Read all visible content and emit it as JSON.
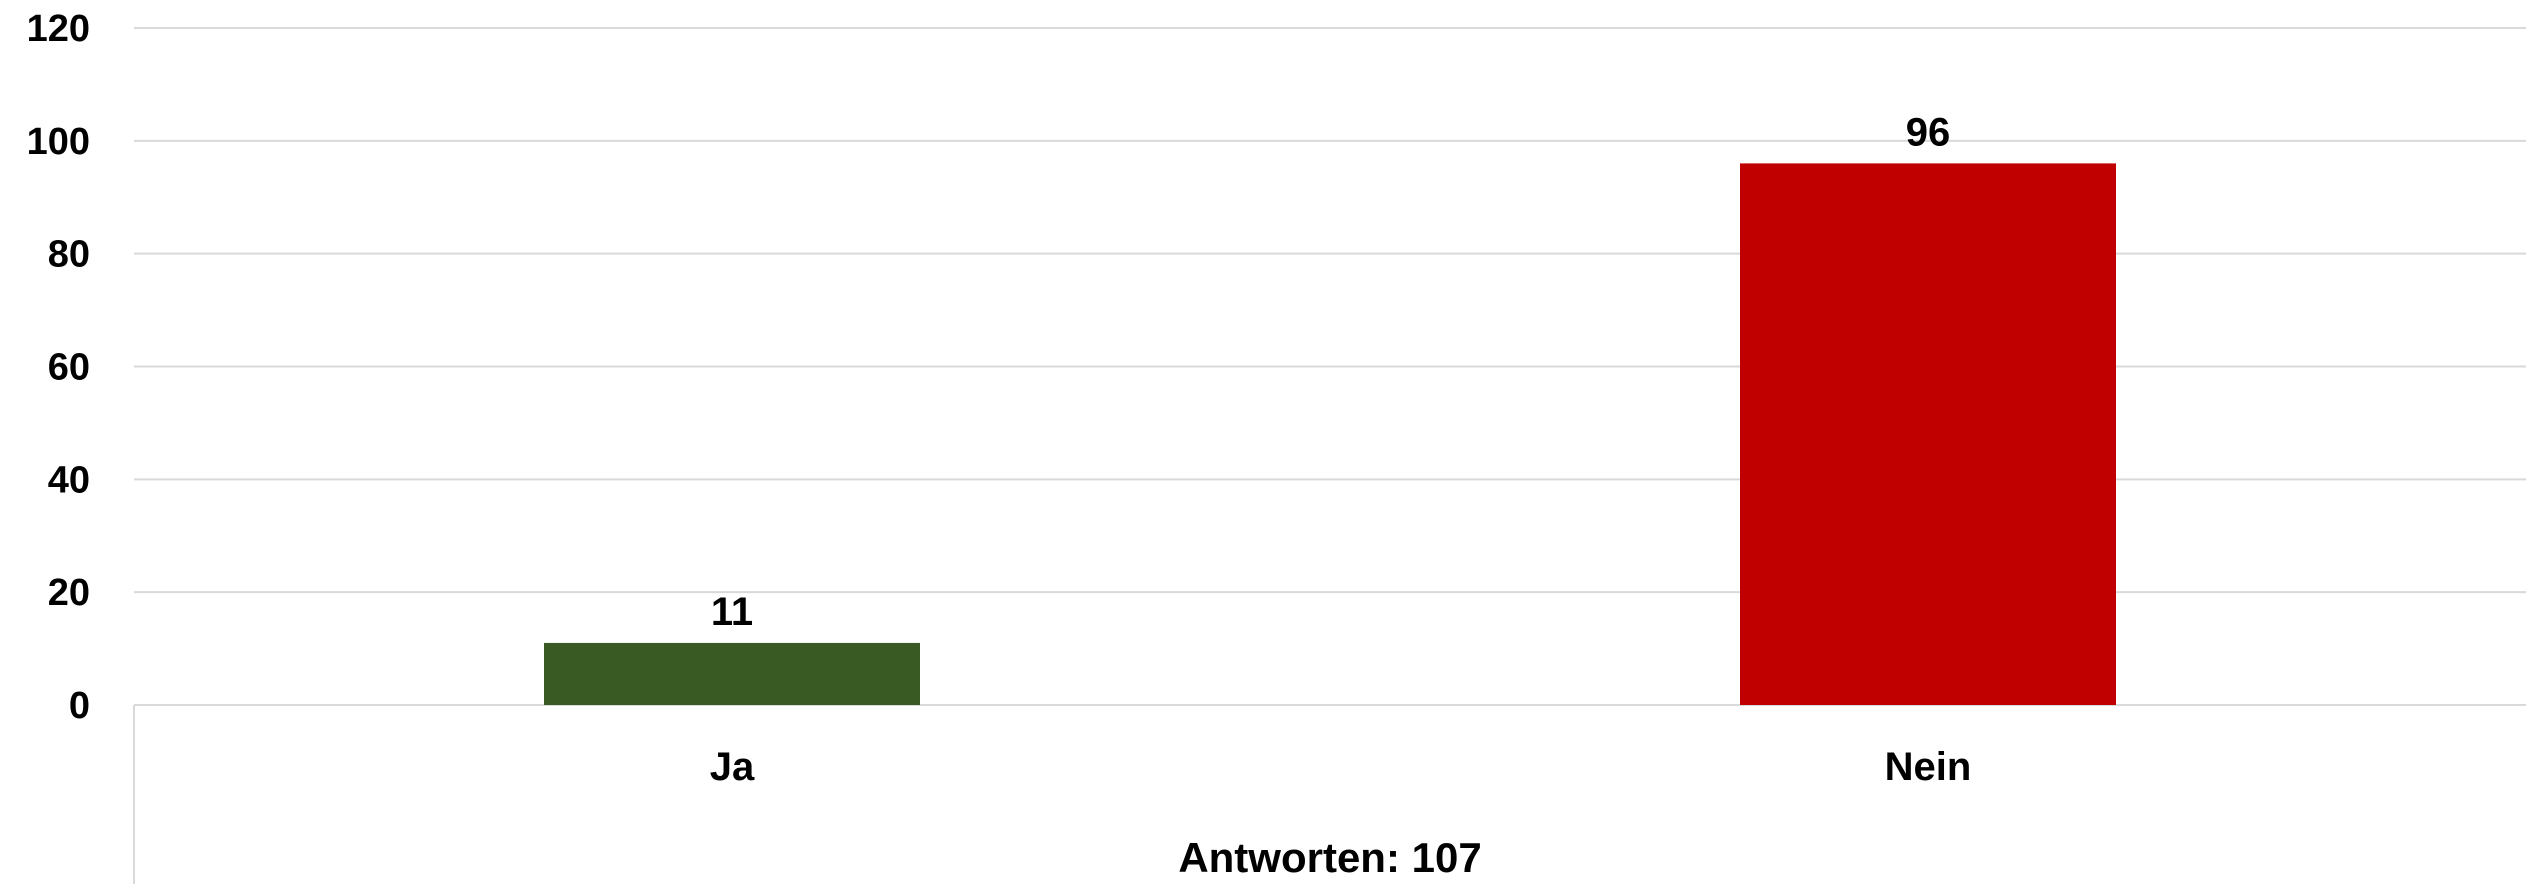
{
  "chart_data": {
    "type": "bar",
    "categories": [
      "Ja",
      "Nein"
    ],
    "values": [
      11,
      96
    ],
    "colors": [
      "#3a5a24",
      "#c00000"
    ],
    "ylim": [
      0,
      120
    ],
    "yticks": [
      0,
      20,
      40,
      60,
      80,
      100,
      120
    ],
    "xlabel": "Antworten: 107",
    "ylabel": "",
    "title": "",
    "grid": true,
    "legend": "none",
    "data_labels": [
      "11",
      "96"
    ]
  }
}
